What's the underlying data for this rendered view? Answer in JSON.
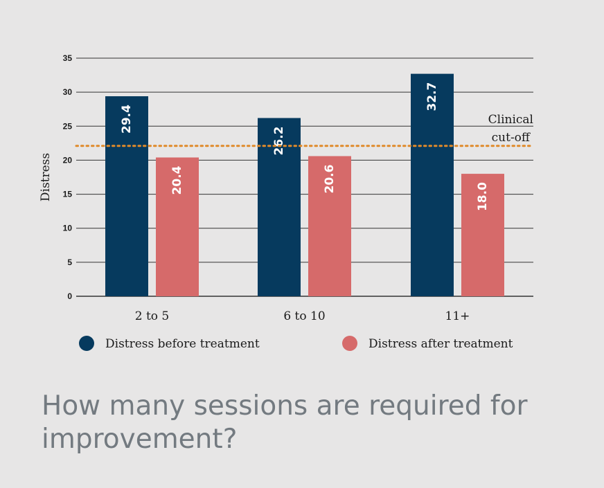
{
  "chart_data": {
    "type": "bar",
    "title": "",
    "xlabel": "",
    "ylabel": "Distress",
    "ylim": [
      0,
      35
    ],
    "yticks": [
      0,
      5,
      10,
      15,
      20,
      25,
      30,
      35
    ],
    "grid": true,
    "categories": [
      "2 to 5",
      "6 to 10",
      "11+"
    ],
    "series": [
      {
        "name": "Distress before treatment",
        "values": [
          29.4,
          26.2,
          32.7
        ],
        "color": "#063a5e"
      },
      {
        "name": "Distress after treatment",
        "values": [
          20.4,
          20.6,
          18.0
        ],
        "color": "#d66a6a"
      }
    ],
    "reference_line": {
      "value": 22.1,
      "label_lines": [
        "Clinical",
        "cut-off"
      ],
      "color": "#e08a2a",
      "style": "dotted"
    },
    "legend_placement": "bottom"
  },
  "headline": "How many sessions are required for improvement?",
  "colors": {
    "background": "#e7e6e6",
    "gridline": "#333333",
    "headline": "#737a80"
  }
}
